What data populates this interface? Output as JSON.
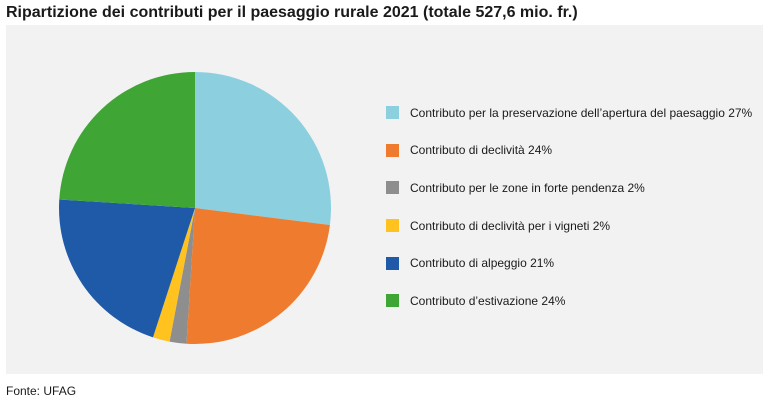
{
  "title": "Ripartizione dei contributi per il paesaggio rurale 2021 (totale 527,6 mio. fr.)",
  "source": "Fonte: UFAG",
  "chart_data": {
    "type": "pie",
    "title": "Ripartizione dei contributi per il paesaggio rurale 2021 (totale 527,6 mio. fr.)",
    "start_angle_deg": 0,
    "direction": "clockwise",
    "legend_position": "right",
    "slices": [
      {
        "label": "Contributo per la preservazione dell’apertura del paesaggio 27%",
        "value": 27,
        "color": "#8ccfdf"
      },
      {
        "label": "Contributo di declività 24%",
        "value": 24,
        "color": "#ef7c2e"
      },
      {
        "label": "Contributo per le zone in forte pendenza 2%",
        "value": 2,
        "color": "#8e8e8e"
      },
      {
        "label": "Contributo di declività per i vigneti 2%",
        "value": 2,
        "color": "#ffc21e"
      },
      {
        "label": "Contributo di alpeggio 21%",
        "value": 21,
        "color": "#1f5aa8"
      },
      {
        "label": "Contributo d’estivazione 24%",
        "value": 24,
        "color": "#3fa535"
      }
    ]
  }
}
